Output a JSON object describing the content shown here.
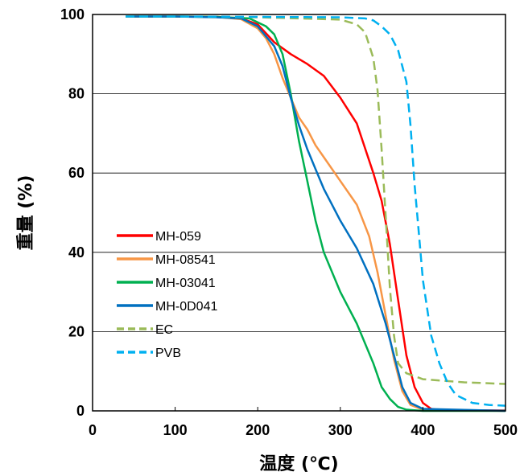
{
  "chart_data": {
    "type": "line",
    "title": "",
    "xlabel": "温度 (℃)",
    "ylabel": "重量 (%)",
    "xlim": [
      0,
      500
    ],
    "ylim": [
      0,
      100
    ],
    "x_ticks": [
      "0",
      "100",
      "200",
      "300",
      "400",
      "500"
    ],
    "y_ticks": [
      "0",
      "20",
      "40",
      "60",
      "80",
      "100"
    ],
    "grid": "horizontal major gridlines",
    "legend_position": "left",
    "series": [
      {
        "name": "MH-059",
        "color": "#ff0000",
        "dash": "solid",
        "points": [
          [
            40,
            99.5
          ],
          [
            100,
            99.5
          ],
          [
            150,
            99.4
          ],
          [
            180,
            99
          ],
          [
            200,
            97.5
          ],
          [
            220,
            93
          ],
          [
            240,
            90
          ],
          [
            260,
            87.5
          ],
          [
            280,
            84.5
          ],
          [
            300,
            79
          ],
          [
            320,
            72.5
          ],
          [
            340,
            60
          ],
          [
            350,
            53
          ],
          [
            360,
            42
          ],
          [
            370,
            28
          ],
          [
            380,
            14
          ],
          [
            390,
            6
          ],
          [
            400,
            2
          ],
          [
            410,
            0.5
          ],
          [
            420,
            0.2
          ],
          [
            500,
            0.1
          ]
        ]
      },
      {
        "name": "MH-08541",
        "color": "#f79646",
        "dash": "solid",
        "points": [
          [
            40,
            99.5
          ],
          [
            100,
            99.5
          ],
          [
            150,
            99.4
          ],
          [
            180,
            98.8
          ],
          [
            200,
            96.5
          ],
          [
            210,
            94
          ],
          [
            220,
            90
          ],
          [
            230,
            84
          ],
          [
            240,
            79
          ],
          [
            250,
            74
          ],
          [
            260,
            71
          ],
          [
            270,
            67
          ],
          [
            280,
            64
          ],
          [
            300,
            58
          ],
          [
            320,
            52
          ],
          [
            335,
            44
          ],
          [
            345,
            35
          ],
          [
            355,
            24
          ],
          [
            365,
            13
          ],
          [
            375,
            5
          ],
          [
            385,
            1.5
          ],
          [
            400,
            0.3
          ],
          [
            500,
            0
          ]
        ]
      },
      {
        "name": "MH-03041",
        "color": "#00b050",
        "dash": "solid",
        "points": [
          [
            40,
            99.5
          ],
          [
            100,
            99.5
          ],
          [
            150,
            99.4
          ],
          [
            190,
            99
          ],
          [
            210,
            97
          ],
          [
            220,
            95
          ],
          [
            230,
            90
          ],
          [
            240,
            80
          ],
          [
            250,
            68
          ],
          [
            260,
            58
          ],
          [
            270,
            48
          ],
          [
            280,
            40
          ],
          [
            300,
            30
          ],
          [
            320,
            22
          ],
          [
            340,
            12
          ],
          [
            350,
            6
          ],
          [
            360,
            3
          ],
          [
            370,
            1
          ],
          [
            380,
            0.3
          ],
          [
            400,
            0
          ],
          [
            500,
            0
          ]
        ]
      },
      {
        "name": "MH-0D041",
        "color": "#0070c0",
        "dash": "solid",
        "points": [
          [
            40,
            99.5
          ],
          [
            100,
            99.5
          ],
          [
            150,
            99.3
          ],
          [
            180,
            99
          ],
          [
            200,
            97
          ],
          [
            220,
            92
          ],
          [
            230,
            87
          ],
          [
            240,
            79
          ],
          [
            250,
            72
          ],
          [
            260,
            66
          ],
          [
            270,
            61
          ],
          [
            280,
            56
          ],
          [
            300,
            48
          ],
          [
            320,
            41
          ],
          [
            340,
            32
          ],
          [
            355,
            22
          ],
          [
            365,
            14
          ],
          [
            375,
            6
          ],
          [
            385,
            2
          ],
          [
            400,
            0.5
          ],
          [
            500,
            0
          ]
        ]
      },
      {
        "name": "EC",
        "color": "#9bbb59",
        "dash": "dashed",
        "points": [
          [
            40,
            99.5
          ],
          [
            100,
            99.5
          ],
          [
            200,
            99.3
          ],
          [
            250,
            99
          ],
          [
            300,
            98.7
          ],
          [
            320,
            97.5
          ],
          [
            330,
            95.5
          ],
          [
            340,
            89
          ],
          [
            345,
            81
          ],
          [
            350,
            66
          ],
          [
            355,
            49
          ],
          [
            360,
            31
          ],
          [
            365,
            19
          ],
          [
            370,
            12
          ],
          [
            380,
            9.5
          ],
          [
            400,
            8
          ],
          [
            450,
            7.2
          ],
          [
            500,
            6.8
          ]
        ]
      },
      {
        "name": "PVB",
        "color": "#00b0f0",
        "dash": "dashed",
        "points": [
          [
            40,
            99.5
          ],
          [
            100,
            99.5
          ],
          [
            200,
            99.4
          ],
          [
            300,
            99.3
          ],
          [
            330,
            99
          ],
          [
            340,
            98.5
          ],
          [
            350,
            97
          ],
          [
            360,
            95
          ],
          [
            370,
            91
          ],
          [
            380,
            83
          ],
          [
            385,
            72
          ],
          [
            390,
            57
          ],
          [
            395,
            45
          ],
          [
            400,
            33
          ],
          [
            410,
            19
          ],
          [
            420,
            12
          ],
          [
            430,
            7
          ],
          [
            440,
            4
          ],
          [
            460,
            2
          ],
          [
            480,
            1.5
          ],
          [
            500,
            1.3
          ]
        ]
      }
    ]
  }
}
